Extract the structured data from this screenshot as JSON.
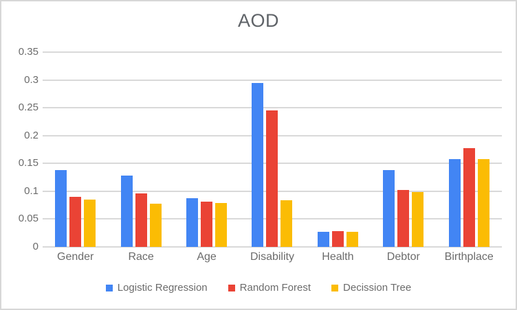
{
  "chart_data": {
    "type": "bar",
    "title": "AOD",
    "categories": [
      "Gender",
      "Race",
      "Age",
      "Disability",
      "Health",
      "Debtor",
      "Birthplace"
    ],
    "series": [
      {
        "name": "Logistic Regression",
        "color": "#4285F4",
        "values": [
          0.138,
          0.128,
          0.088,
          0.294,
          0.027,
          0.138,
          0.158
        ]
      },
      {
        "name": "Random Forest",
        "color": "#EA4335",
        "values": [
          0.09,
          0.096,
          0.081,
          0.245,
          0.028,
          0.102,
          0.177
        ]
      },
      {
        "name": "Decission Tree",
        "color": "#FBBC04",
        "values": [
          0.085,
          0.078,
          0.079,
          0.084,
          0.027,
          0.099,
          0.158
        ]
      }
    ],
    "ylim": [
      0,
      0.35
    ],
    "ytick_values": [
      0,
      0.05,
      0.1,
      0.15,
      0.2,
      0.25,
      0.3,
      0.35
    ],
    "ytick_labels": [
      "0",
      "0.05",
      "0.1",
      "0.15",
      "0.2",
      "0.25",
      "0.3",
      "0.35"
    ],
    "grid": true,
    "legend_position": "bottom",
    "grid_color": "#d9d9d9",
    "title_color": "#5f6368",
    "axis_text_color": "#6b6b6b"
  }
}
